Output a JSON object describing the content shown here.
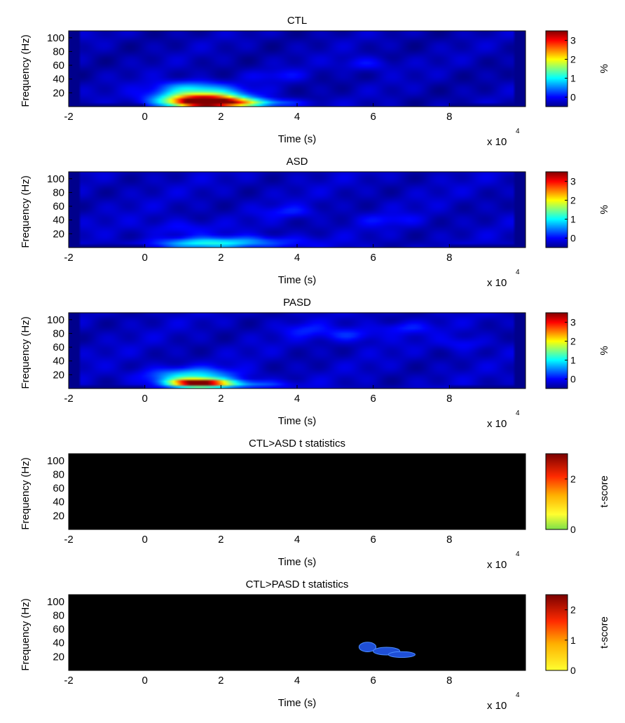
{
  "chart_data": [
    {
      "type": "heatmap",
      "title": "CTL",
      "xlabel": "Time (s)",
      "ylabel": "Frequency (Hz)",
      "x_exponent_label": "x 10",
      "x_exponent": "4",
      "xlim": [
        -2,
        10
      ],
      "ylim": [
        0,
        110
      ],
      "xticks": [
        "-2",
        "0",
        "2",
        "4",
        "6",
        "8"
      ],
      "yticks": [
        "20",
        "40",
        "60",
        "80",
        "100"
      ],
      "colorbar": {
        "label": "%",
        "colormap": "jet",
        "clim": [
          -0.5,
          3.5
        ],
        "ticks": [
          "0",
          "1",
          "2",
          "3"
        ]
      },
      "background_value": -0.3,
      "blobs": [
        {
          "t": 1.6,
          "f": 7,
          "st": 0.7,
          "sf": 6,
          "v": 3.6
        },
        {
          "t": 1.4,
          "f": 16,
          "st": 0.8,
          "sf": 9,
          "v": 1.7
        },
        {
          "t": 2.6,
          "f": 5,
          "st": 0.9,
          "sf": 4,
          "v": 1.3
        },
        {
          "t": 1.2,
          "f": 30,
          "st": 0.6,
          "sf": 6,
          "v": 0.6
        },
        {
          "t": 5.8,
          "f": 62,
          "st": 0.5,
          "sf": 7,
          "v": 0.35
        },
        {
          "t": 3.5,
          "f": 45,
          "st": 0.6,
          "sf": 6,
          "v": 0.25
        }
      ]
    },
    {
      "type": "heatmap",
      "title": "ASD",
      "xlabel": "Time (s)",
      "ylabel": "Frequency (Hz)",
      "x_exponent_label": "x 10",
      "x_exponent": "4",
      "xlim": [
        -2,
        10
      ],
      "ylim": [
        0,
        110
      ],
      "xticks": [
        "-2",
        "0",
        "2",
        "4",
        "6",
        "8"
      ],
      "yticks": [
        "20",
        "40",
        "60",
        "80",
        "100"
      ],
      "colorbar": {
        "label": "%",
        "colormap": "jet",
        "clim": [
          -0.5,
          3.5
        ],
        "ticks": [
          "0",
          "1",
          "2",
          "3"
        ]
      },
      "background_value": -0.25,
      "blobs": [
        {
          "t": 1.5,
          "f": 6,
          "st": 0.9,
          "sf": 5,
          "v": 1.0
        },
        {
          "t": 2.8,
          "f": 8,
          "st": 1.0,
          "sf": 6,
          "v": 0.6
        },
        {
          "t": 0.9,
          "f": 28,
          "st": 0.6,
          "sf": 8,
          "v": 0.3
        },
        {
          "t": 3.8,
          "f": 52,
          "st": 0.5,
          "sf": 6,
          "v": 0.3
        },
        {
          "t": 6.4,
          "f": 40,
          "st": 0.6,
          "sf": 6,
          "v": 0.25
        }
      ]
    },
    {
      "type": "heatmap",
      "title": "PASD",
      "xlabel": "Time (s)",
      "ylabel": "Frequency (Hz)",
      "x_exponent_label": "x 10",
      "x_exponent": "4",
      "xlim": [
        -2,
        10
      ],
      "ylim": [
        0,
        110
      ],
      "xticks": [
        "-2",
        "0",
        "2",
        "4",
        "6",
        "8"
      ],
      "yticks": [
        "20",
        "40",
        "60",
        "80",
        "100"
      ],
      "colorbar": {
        "label": "%",
        "colormap": "jet",
        "clim": [
          -0.5,
          3.5
        ],
        "ticks": [
          "0",
          "1",
          "2",
          "3"
        ]
      },
      "background_value": -0.25,
      "blobs": [
        {
          "t": 1.4,
          "f": 8,
          "st": 0.5,
          "sf": 4,
          "v": 3.6
        },
        {
          "t": 1.2,
          "f": 18,
          "st": 0.8,
          "sf": 8,
          "v": 1.2
        },
        {
          "t": 2.4,
          "f": 6,
          "st": 0.8,
          "sf": 4,
          "v": 0.9
        },
        {
          "t": 5.4,
          "f": 78,
          "st": 0.5,
          "sf": 7,
          "v": 0.45
        },
        {
          "t": 6.8,
          "f": 88,
          "st": 0.5,
          "sf": 6,
          "v": 0.35
        },
        {
          "t": 4.2,
          "f": 85,
          "st": 0.4,
          "sf": 7,
          "v": 0.3
        },
        {
          "t": 8.4,
          "f": 65,
          "st": 0.4,
          "sf": 7,
          "v": 0.3
        }
      ]
    },
    {
      "type": "heatmap",
      "title": "CTL>ASD t statistics",
      "xlabel": "Time (s)",
      "ylabel": "Frequency (Hz)",
      "x_exponent_label": "x 10",
      "x_exponent": "4",
      "xlim": [
        -2,
        10
      ],
      "ylim": [
        0,
        110
      ],
      "xticks": [
        "-2",
        "0",
        "2",
        "4",
        "6",
        "8"
      ],
      "yticks": [
        "20",
        "40",
        "60",
        "80",
        "100"
      ],
      "colorbar": {
        "label": "t-score",
        "colormap": "hot-reverse",
        "clim": [
          0,
          3
        ],
        "ticks": [
          "0",
          "2"
        ]
      },
      "background_color": "#000000",
      "significant_regions": []
    },
    {
      "type": "heatmap",
      "title": "CTL>PASD t statistics",
      "xlabel": "Time (s)",
      "ylabel": "Frequency (Hz)",
      "x_exponent_label": "x 10",
      "x_exponent": "4",
      "xlim": [
        -2,
        10
      ],
      "ylim": [
        0,
        110
      ],
      "xticks": [
        "-2",
        "0",
        "2",
        "4",
        "6",
        "8"
      ],
      "yticks": [
        "20",
        "40",
        "60",
        "80",
        "100"
      ],
      "colorbar": {
        "label": "t-score",
        "colormap": "hot-reverse",
        "clim": [
          0,
          2.5
        ],
        "ticks": [
          "0",
          "1",
          "2"
        ]
      },
      "background_color": "#000000",
      "significant_regions": [
        {
          "t": 5.85,
          "f": 34,
          "st": 0.14,
          "sf": 5,
          "color": "#1f4fd6"
        },
        {
          "t": 6.35,
          "f": 28,
          "st": 0.22,
          "sf": 4,
          "color": "#1f4fd6"
        },
        {
          "t": 6.75,
          "f": 23,
          "st": 0.22,
          "sf": 3,
          "color": "#1f4fd6"
        }
      ]
    }
  ]
}
